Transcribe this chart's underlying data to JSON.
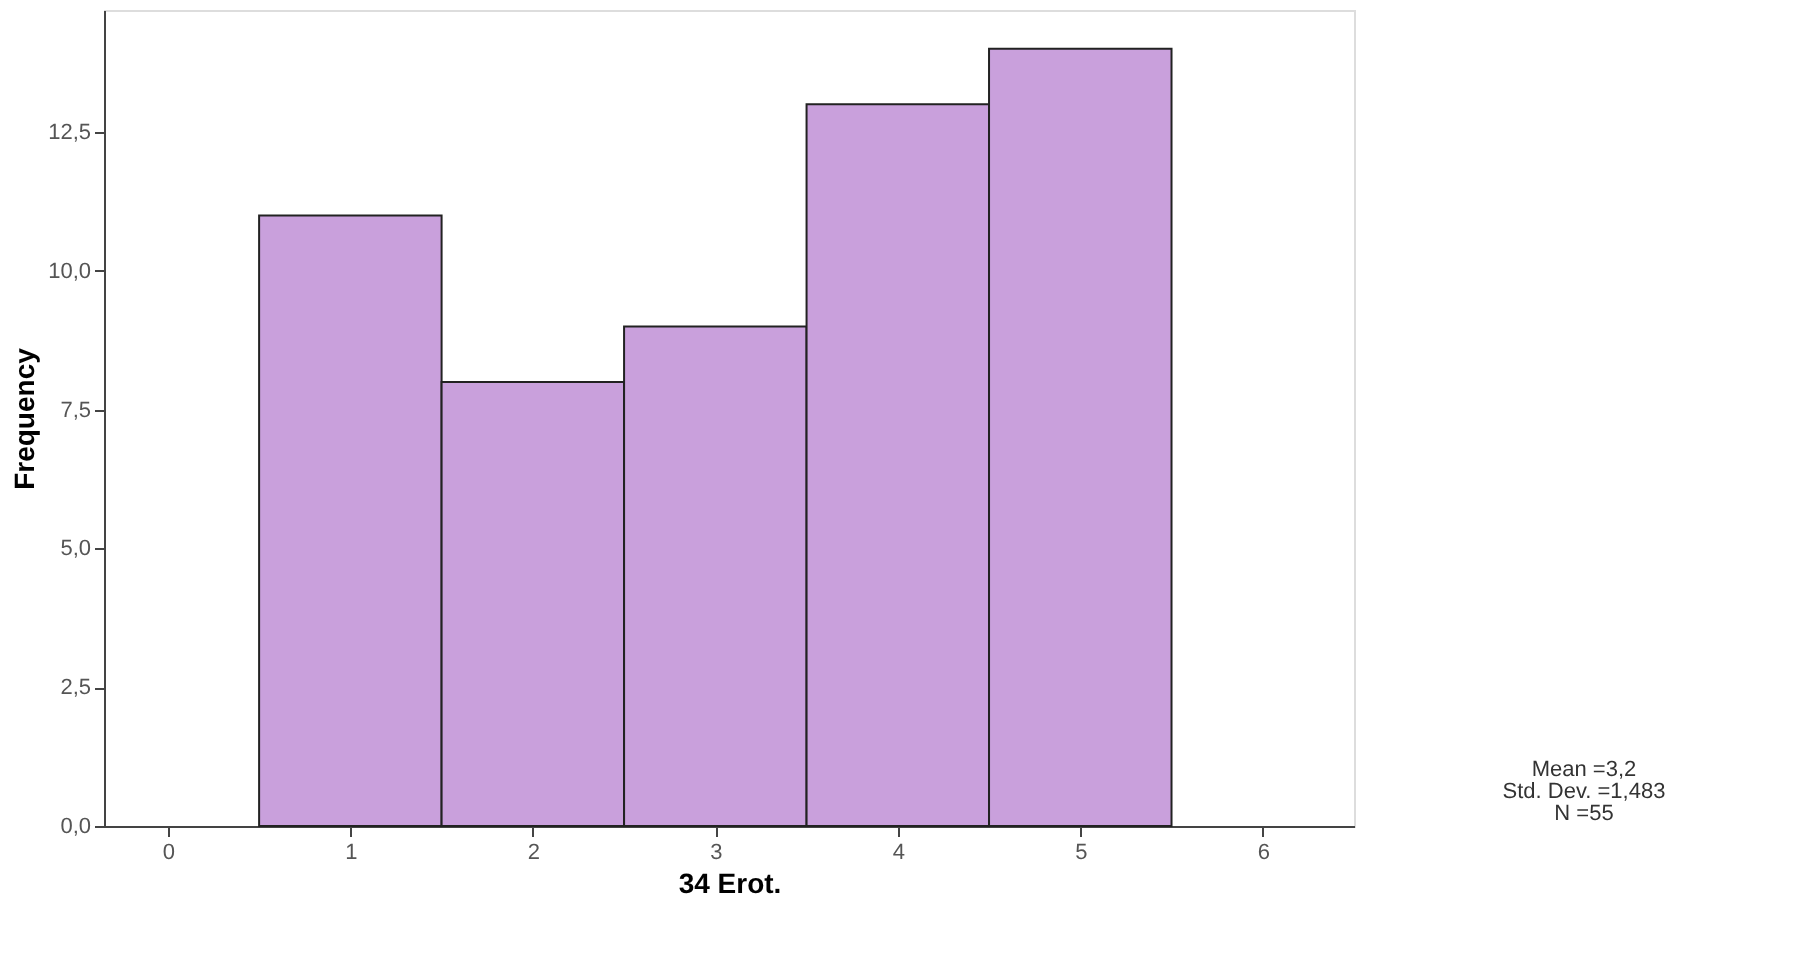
{
  "chart_data": {
    "type": "histogram",
    "xlabel": "34 Erot.",
    "ylabel": "Frequency",
    "bins": [
      0.5,
      1.5,
      2.5,
      3.5,
      4.5,
      5.5
    ],
    "values": [
      11,
      8,
      9,
      13,
      14
    ],
    "color": "#c9a0dc",
    "xlim": [
      -0.35,
      6.5
    ],
    "xticks": [
      0,
      1,
      2,
      3,
      4,
      5,
      6
    ],
    "ylim": [
      0,
      14.7
    ],
    "yticks": [
      {
        "value": 0,
        "label": "0,0"
      },
      {
        "value": 2.5,
        "label": "2,5"
      },
      {
        "value": 5,
        "label": "5,0"
      },
      {
        "value": 7.5,
        "label": "7,5"
      },
      {
        "value": 10,
        "label": "10,0"
      },
      {
        "value": 12.5,
        "label": "12,5"
      }
    ],
    "grid": false,
    "annotations": [
      "Mean =3,2",
      "Std. Dev. =1,483",
      "N =55"
    ]
  }
}
